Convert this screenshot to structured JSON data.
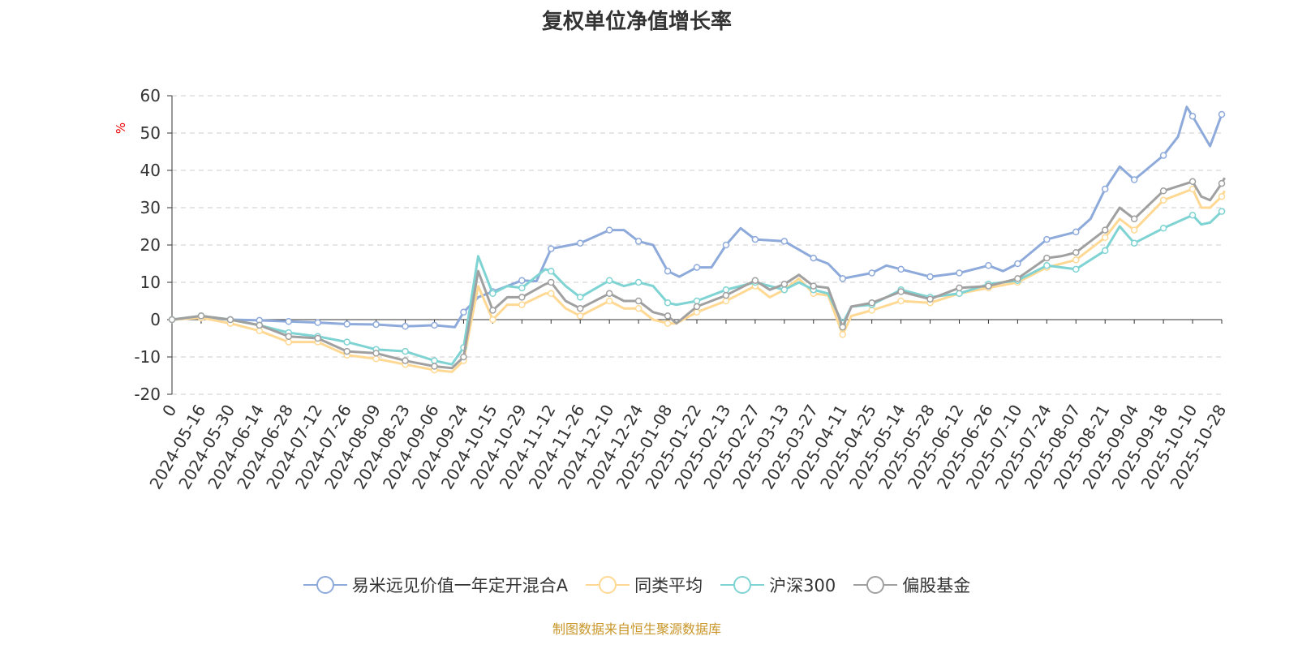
{
  "chart_data": {
    "type": "line",
    "title": "复权单位净值增长率",
    "ylabel": "%",
    "xlabel": "",
    "ylim": [
      -20,
      60
    ],
    "yticks": [
      -20,
      -10,
      0,
      10,
      20,
      30,
      40,
      50,
      60
    ],
    "grid": true,
    "legend_position": "bottom",
    "categories": [
      "0",
      "2024-05-16",
      "2024-05-30",
      "2024-06-14",
      "2024-06-28",
      "2024-07-12",
      "2024-07-26",
      "2024-08-09",
      "2024-08-23",
      "2024-09-06",
      "2024-09-24",
      "2024-10-15",
      "2024-10-29",
      "2024-11-12",
      "2024-11-26",
      "2024-12-10",
      "2024-12-24",
      "2025-01-08",
      "2025-01-22",
      "2025-02-13",
      "2025-02-27",
      "2025-03-13",
      "2025-03-27",
      "2025-04-11",
      "2025-04-25",
      "2025-05-14",
      "2025-05-28",
      "2025-06-12",
      "2025-06-26",
      "2025-07-10",
      "2025-07-24",
      "2025-08-07",
      "2025-08-21",
      "2025-09-04",
      "2025-09-18",
      "2025-10-10",
      "2025-10-28"
    ],
    "series": [
      {
        "name": "易米远见价值一年定开混合A",
        "color": "#8eaadb",
        "points": [
          [
            0,
            0
          ],
          [
            1,
            0.5
          ],
          [
            2,
            0
          ],
          [
            3,
            -0.2
          ],
          [
            4,
            -0.5
          ],
          [
            5,
            -0.8
          ],
          [
            6,
            -1.2
          ],
          [
            7,
            -1.3
          ],
          [
            8,
            -1.8
          ],
          [
            9,
            -1.5
          ],
          [
            9.7,
            -2
          ],
          [
            10,
            2
          ],
          [
            10.5,
            6
          ],
          [
            11,
            7.5
          ],
          [
            12,
            10.5
          ],
          [
            12.5,
            10.3
          ],
          [
            13,
            19
          ],
          [
            14,
            20.5
          ],
          [
            15,
            24
          ],
          [
            15.5,
            24
          ],
          [
            16,
            21
          ],
          [
            16.5,
            20
          ],
          [
            17,
            13
          ],
          [
            17.4,
            11.5
          ],
          [
            18,
            14
          ],
          [
            18.5,
            14
          ],
          [
            19,
            20
          ],
          [
            19.5,
            24.5
          ],
          [
            20,
            21.5
          ],
          [
            21,
            21
          ],
          [
            22,
            16.5
          ],
          [
            22.5,
            15
          ],
          [
            23,
            11
          ],
          [
            24,
            12.5
          ],
          [
            24.5,
            14.5
          ],
          [
            25,
            13.5
          ],
          [
            26,
            11.5
          ],
          [
            27,
            12.5
          ],
          [
            28,
            14.5
          ],
          [
            28.5,
            13
          ],
          [
            29,
            15
          ],
          [
            30,
            21.5
          ],
          [
            31,
            23.5
          ],
          [
            31.5,
            27
          ],
          [
            32,
            35
          ],
          [
            32.5,
            41
          ],
          [
            33,
            37.5
          ],
          [
            34,
            44
          ],
          [
            34.5,
            49
          ],
          [
            34.8,
            57
          ],
          [
            35,
            54.5
          ],
          [
            35.6,
            46.5
          ],
          [
            36,
            55
          ]
        ]
      },
      {
        "name": "同类平均",
        "color": "#ffd994",
        "points": [
          [
            0,
            0
          ],
          [
            1,
            0.5
          ],
          [
            2,
            -1
          ],
          [
            3,
            -3
          ],
          [
            4,
            -6
          ],
          [
            5,
            -6
          ],
          [
            6,
            -9.5
          ],
          [
            7,
            -10.5
          ],
          [
            8,
            -12
          ],
          [
            9,
            -13.5
          ],
          [
            9.6,
            -14
          ],
          [
            10,
            -11
          ],
          [
            10.5,
            9
          ],
          [
            11,
            0
          ],
          [
            11.5,
            4
          ],
          [
            12,
            4
          ],
          [
            12.8,
            7
          ],
          [
            13,
            7
          ],
          [
            13.5,
            3
          ],
          [
            14,
            1
          ],
          [
            15,
            5
          ],
          [
            15.5,
            3
          ],
          [
            16,
            3
          ],
          [
            16.5,
            0
          ],
          [
            17,
            -1
          ],
          [
            17.3,
            -1
          ],
          [
            18,
            2
          ],
          [
            19,
            5
          ],
          [
            20,
            9
          ],
          [
            20.5,
            6
          ],
          [
            21,
            8
          ],
          [
            21.5,
            11
          ],
          [
            22,
            7
          ],
          [
            22.5,
            6.5
          ],
          [
            23,
            -4
          ],
          [
            23.3,
            1
          ],
          [
            24,
            2.5
          ],
          [
            25,
            5
          ],
          [
            26,
            4.5
          ],
          [
            27,
            7
          ],
          [
            28,
            8.5
          ],
          [
            29,
            10
          ],
          [
            30,
            14
          ],
          [
            31,
            16
          ],
          [
            32,
            22
          ],
          [
            32.5,
            27
          ],
          [
            33,
            24
          ],
          [
            34,
            32
          ],
          [
            35,
            35
          ],
          [
            35.3,
            30
          ],
          [
            35.6,
            30
          ],
          [
            36,
            33
          ],
          [
            36.1,
            34.5
          ]
        ]
      },
      {
        "name": "沪深300",
        "color": "#7fd3d3",
        "points": [
          [
            0,
            0
          ],
          [
            1,
            1
          ],
          [
            2,
            0
          ],
          [
            3,
            -1.5
          ],
          [
            4,
            -3.5
          ],
          [
            5,
            -4.5
          ],
          [
            6,
            -6
          ],
          [
            7,
            -8
          ],
          [
            8,
            -8.5
          ],
          [
            9,
            -11
          ],
          [
            9.6,
            -12
          ],
          [
            10,
            -7.5
          ],
          [
            10.5,
            17
          ],
          [
            11,
            7
          ],
          [
            11.5,
            9
          ],
          [
            12,
            8.5
          ],
          [
            12.8,
            13.5
          ],
          [
            13,
            13
          ],
          [
            13.5,
            9
          ],
          [
            14,
            6
          ],
          [
            15,
            10.5
          ],
          [
            15.5,
            9
          ],
          [
            16,
            10
          ],
          [
            16.5,
            9
          ],
          [
            17,
            4.5
          ],
          [
            17.3,
            4
          ],
          [
            18,
            5
          ],
          [
            19,
            8
          ],
          [
            20,
            10
          ],
          [
            20.5,
            9
          ],
          [
            21,
            8
          ],
          [
            21.5,
            10
          ],
          [
            22,
            8
          ],
          [
            22.5,
            7
          ],
          [
            23,
            -1
          ],
          [
            23.3,
            3.5
          ],
          [
            24,
            4
          ],
          [
            25,
            8
          ],
          [
            26,
            6
          ],
          [
            27,
            7
          ],
          [
            28,
            9.5
          ],
          [
            29,
            10.5
          ],
          [
            30,
            14.5
          ],
          [
            31,
            13.5
          ],
          [
            32,
            18.5
          ],
          [
            32.5,
            25
          ],
          [
            33,
            20.5
          ],
          [
            34,
            24.5
          ],
          [
            35,
            28
          ],
          [
            35.3,
            25.5
          ],
          [
            35.6,
            26
          ],
          [
            36,
            29
          ],
          [
            36.1,
            29.5
          ]
        ]
      },
      {
        "name": "偏股基金",
        "color": "#a0a0a0",
        "points": [
          [
            0,
            0
          ],
          [
            1,
            1
          ],
          [
            2,
            0
          ],
          [
            3,
            -1.5
          ],
          [
            4,
            -4.5
          ],
          [
            5,
            -5
          ],
          [
            6,
            -8.5
          ],
          [
            7,
            -9
          ],
          [
            8,
            -11
          ],
          [
            9,
            -12.5
          ],
          [
            9.6,
            -13
          ],
          [
            10,
            -10
          ],
          [
            10.5,
            13
          ],
          [
            11,
            2.5
          ],
          [
            11.5,
            6
          ],
          [
            12,
            6
          ],
          [
            12.8,
            9.5
          ],
          [
            13,
            10
          ],
          [
            13.5,
            5
          ],
          [
            14,
            3
          ],
          [
            15,
            7
          ],
          [
            15.5,
            5
          ],
          [
            16,
            5
          ],
          [
            16.5,
            2
          ],
          [
            17,
            1
          ],
          [
            17.3,
            -1
          ],
          [
            18,
            3.5
          ],
          [
            19,
            6.5
          ],
          [
            20,
            10.5
          ],
          [
            20.5,
            8
          ],
          [
            21,
            9.5
          ],
          [
            21.5,
            12
          ],
          [
            22,
            9
          ],
          [
            22.5,
            8.5
          ],
          [
            23,
            -2
          ],
          [
            23.3,
            3.5
          ],
          [
            24,
            4.5
          ],
          [
            25,
            7.5
          ],
          [
            26,
            5.5
          ],
          [
            27,
            8.5
          ],
          [
            28,
            9
          ],
          [
            29,
            11
          ],
          [
            30,
            16.5
          ],
          [
            30.5,
            17
          ],
          [
            31,
            18
          ],
          [
            32,
            24
          ],
          [
            32.5,
            30
          ],
          [
            33,
            27
          ],
          [
            34,
            34.5
          ],
          [
            35,
            37
          ],
          [
            35.3,
            33
          ],
          [
            35.6,
            32
          ],
          [
            36,
            36.5
          ],
          [
            36.1,
            38
          ]
        ]
      }
    ]
  },
  "source": "制图数据来自恒生聚源数据库"
}
